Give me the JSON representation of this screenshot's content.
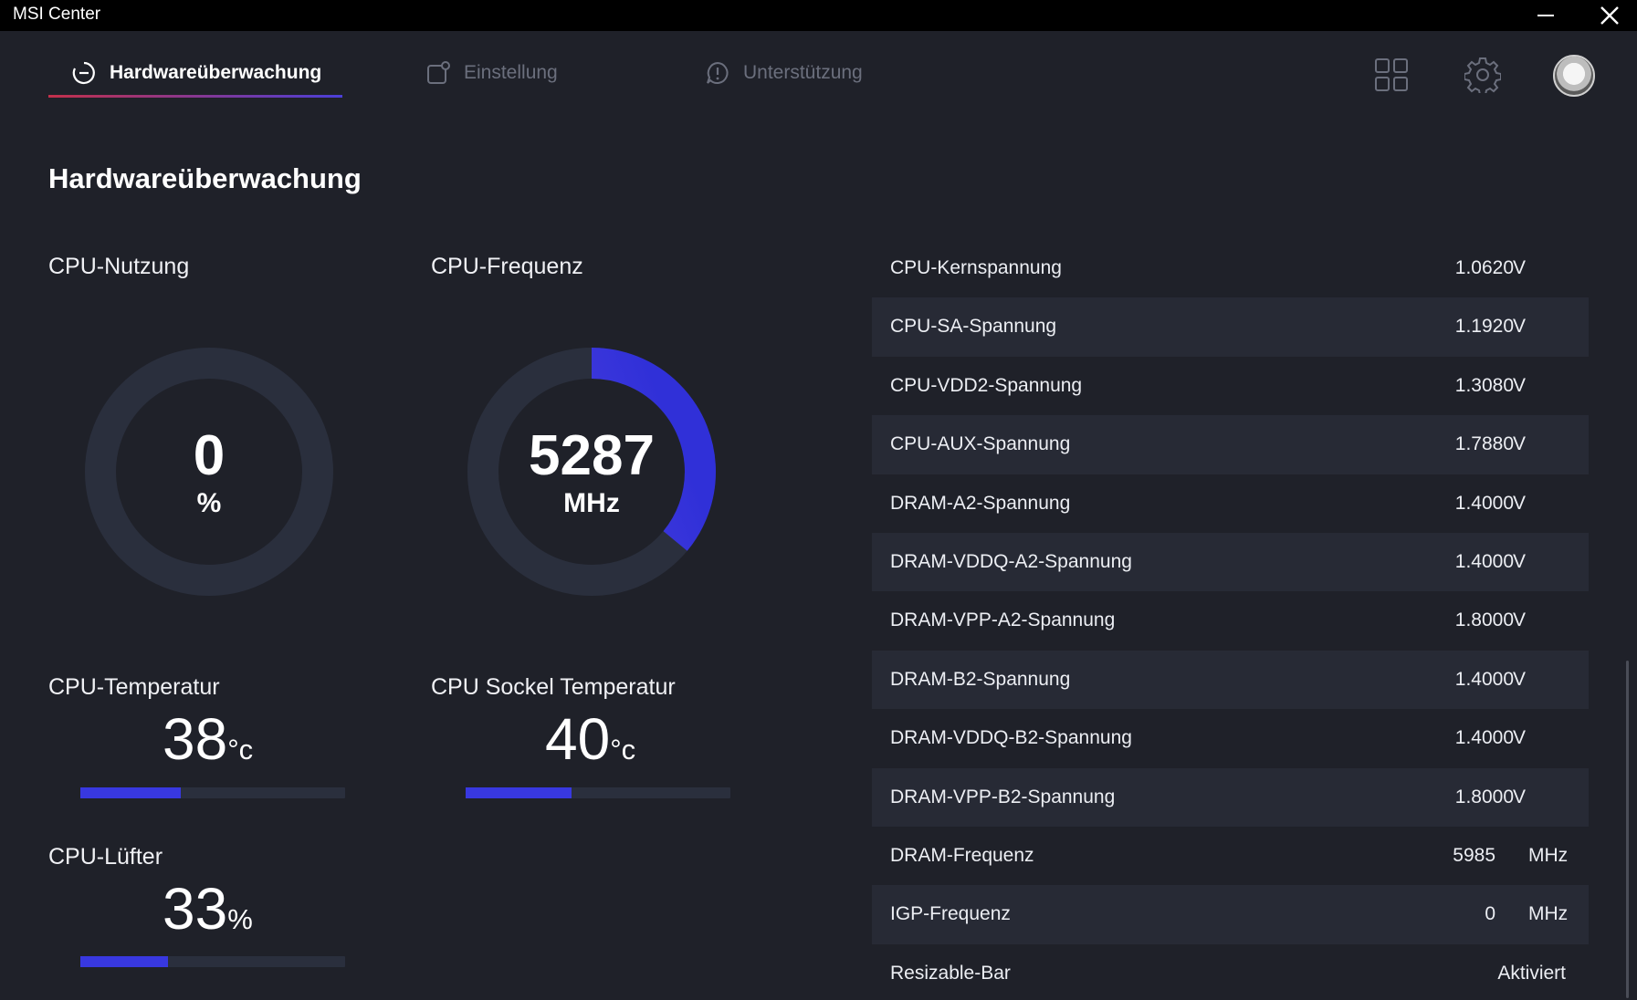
{
  "window": {
    "title": "MSI Center"
  },
  "nav": {
    "tabs": [
      {
        "label": "Hardwareüberwachung",
        "active": true,
        "icon": "monitor-clock-icon"
      },
      {
        "label": "Einstellung",
        "active": false,
        "icon": "settings-square-icon"
      },
      {
        "label": "Unterstützung",
        "active": false,
        "icon": "alert-circle-icon"
      }
    ],
    "icons": [
      "grid-icon",
      "gear-icon",
      "avatar"
    ]
  },
  "page": {
    "title": "Hardwareüberwachung"
  },
  "cpu_usage": {
    "label": "CPU-Nutzung",
    "value": "0",
    "unit": "%",
    "fraction": 0
  },
  "cpu_freq": {
    "label": "CPU-Frequenz",
    "value": "5287",
    "unit": "MHz",
    "fraction": 0.36
  },
  "cpu_temp": {
    "label": "CPU-Temperatur",
    "value": "38",
    "unit": "°c",
    "fraction": 0.38
  },
  "socket_temp": {
    "label": "CPU Sockel Temperatur",
    "value": "40",
    "unit": "°c",
    "fraction": 0.4
  },
  "cpu_fan": {
    "label": "CPU-Lüfter",
    "value": "33",
    "unit": "%",
    "fraction": 0.33
  },
  "stats": [
    {
      "name": "CPU-Kernspannung",
      "value": "1.0620",
      "unit": "V"
    },
    {
      "name": "CPU-SA-Spannung",
      "value": "1.1920",
      "unit": "V"
    },
    {
      "name": "CPU-VDD2-Spannung",
      "value": "1.3080",
      "unit": "V"
    },
    {
      "name": "CPU-AUX-Spannung",
      "value": "1.7880",
      "unit": "V"
    },
    {
      "name": "DRAM-A2-Spannung",
      "value": "1.4000",
      "unit": "V"
    },
    {
      "name": "DRAM-VDDQ-A2-Spannung",
      "value": "1.4000",
      "unit": "V"
    },
    {
      "name": "DRAM-VPP-A2-Spannung",
      "value": "1.8000",
      "unit": "V"
    },
    {
      "name": "DRAM-B2-Spannung",
      "value": "1.4000",
      "unit": "V"
    },
    {
      "name": "DRAM-VDDQ-B2-Spannung",
      "value": "1.4000",
      "unit": "V"
    },
    {
      "name": "DRAM-VPP-B2-Spannung",
      "value": "1.8000",
      "unit": "V"
    },
    {
      "name": "DRAM-Frequenz",
      "value": "5985",
      "unit": "MHz"
    },
    {
      "name": "IGP-Frequenz",
      "value": "0",
      "unit": "MHz"
    },
    {
      "name": "Resizable-Bar",
      "value": "Aktiviert",
      "unit": ""
    }
  ],
  "colors": {
    "background": "#1f2129",
    "accent": "#3838e0",
    "gradient_start": "#c3304a"
  }
}
